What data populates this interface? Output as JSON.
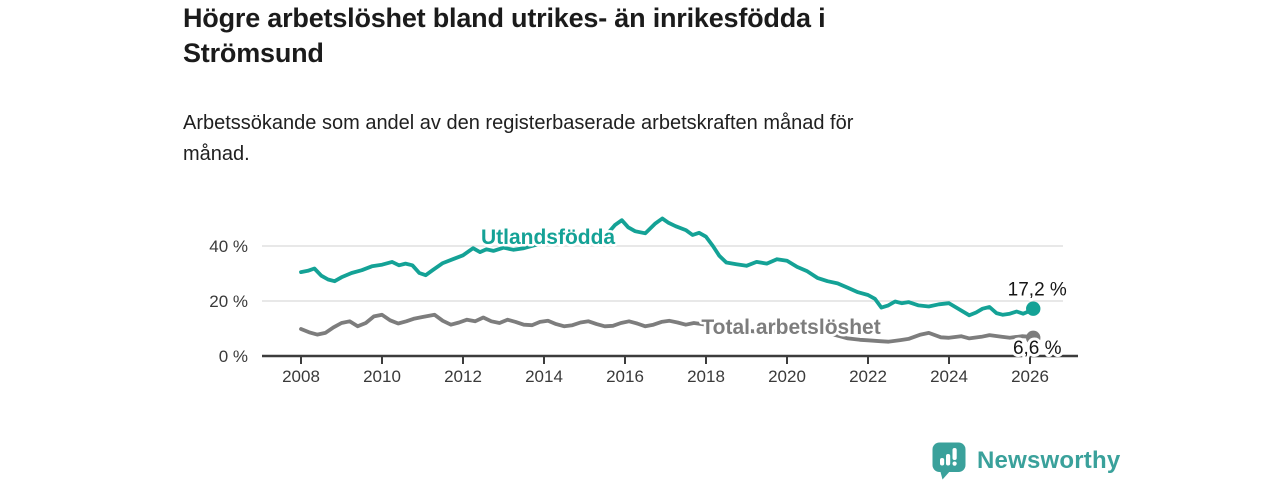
{
  "title": "Högre arbetslöshet bland utrikes- än inrikesfödda i Strömsund",
  "subtitle": "Arbetssökande som andel av den registerbaserade arbetskraften månad för månad.",
  "footer": {
    "brand": "Newsworthy"
  },
  "chart_data": {
    "type": "line",
    "title": "Högre arbetslöshet bland utrikes- än inrikesfödda i Strömsund",
    "xlabel": "",
    "ylabel": "",
    "x_ticks": [
      2008,
      2010,
      2012,
      2014,
      2016,
      2018,
      2020,
      2022,
      2024,
      2026
    ],
    "y_ticks": [
      {
        "value": 0,
        "label": "0 %"
      },
      {
        "value": 20,
        "label": "20 %"
      },
      {
        "value": 40,
        "label": "40 %"
      }
    ],
    "y_gridlines": [
      20,
      40
    ],
    "xlim": [
      2006.9,
      2027.2
    ],
    "ylim": [
      0,
      54
    ],
    "legend_position": "inline-labels",
    "grid": "horizontal-only",
    "colors": {
      "accent_teal": "#14a296",
      "series_gray": "#7d7d7d",
      "axis": "#3c3c3c",
      "grid": "#d9d9d9",
      "value_label": "#161616",
      "brand_teal": "#3aa19b"
    },
    "series": [
      {
        "id": "utlandsfodda",
        "name": "Utlandsfödda",
        "color": "#14a296",
        "end_label": "17,2 %",
        "end_value": 17.2,
        "end_label_position": "above",
        "label_pos": {
          "x": 2014.1,
          "y": 43.3
        },
        "points": [
          [
            2008.0,
            30.5
          ],
          [
            2008.17,
            31.0
          ],
          [
            2008.33,
            31.8
          ],
          [
            2008.5,
            29.2
          ],
          [
            2008.67,
            27.8
          ],
          [
            2008.83,
            27.2
          ],
          [
            2009.0,
            28.6
          ],
          [
            2009.25,
            30.2
          ],
          [
            2009.5,
            31.2
          ],
          [
            2009.75,
            32.6
          ],
          [
            2010.0,
            33.2
          ],
          [
            2010.25,
            34.2
          ],
          [
            2010.42,
            33.0
          ],
          [
            2010.58,
            33.6
          ],
          [
            2010.75,
            33.0
          ],
          [
            2010.92,
            30.2
          ],
          [
            2011.08,
            29.4
          ],
          [
            2011.25,
            31.2
          ],
          [
            2011.5,
            33.8
          ],
          [
            2011.75,
            35.2
          ],
          [
            2012.0,
            36.6
          ],
          [
            2012.25,
            39.2
          ],
          [
            2012.42,
            37.8
          ],
          [
            2012.58,
            38.8
          ],
          [
            2012.75,
            38.2
          ],
          [
            2013.0,
            39.4
          ],
          [
            2013.25,
            38.6
          ],
          [
            2013.5,
            39.2
          ],
          [
            2013.75,
            40.2
          ],
          [
            2014.0,
            41.2
          ],
          [
            2014.25,
            43.6
          ],
          [
            2014.5,
            42.0
          ],
          [
            2014.75,
            42.8
          ],
          [
            2015.0,
            43.2
          ],
          [
            2015.25,
            44.6
          ],
          [
            2015.5,
            43.4
          ],
          [
            2015.75,
            47.6
          ],
          [
            2015.92,
            49.4
          ],
          [
            2016.08,
            46.8
          ],
          [
            2016.25,
            45.4
          ],
          [
            2016.5,
            44.6
          ],
          [
            2016.75,
            48.2
          ],
          [
            2016.92,
            50.0
          ],
          [
            2017.08,
            48.4
          ],
          [
            2017.25,
            47.2
          ],
          [
            2017.5,
            45.8
          ],
          [
            2017.67,
            44.0
          ],
          [
            2017.83,
            44.8
          ],
          [
            2018.0,
            43.4
          ],
          [
            2018.17,
            40.0
          ],
          [
            2018.33,
            36.4
          ],
          [
            2018.5,
            34.0
          ],
          [
            2018.75,
            33.4
          ],
          [
            2019.0,
            32.8
          ],
          [
            2019.25,
            34.2
          ],
          [
            2019.5,
            33.6
          ],
          [
            2019.75,
            35.2
          ],
          [
            2020.0,
            34.6
          ],
          [
            2020.25,
            32.4
          ],
          [
            2020.5,
            30.8
          ],
          [
            2020.75,
            28.4
          ],
          [
            2021.0,
            27.2
          ],
          [
            2021.25,
            26.4
          ],
          [
            2021.5,
            24.8
          ],
          [
            2021.75,
            23.2
          ],
          [
            2022.0,
            22.2
          ],
          [
            2022.17,
            20.8
          ],
          [
            2022.33,
            17.6
          ],
          [
            2022.5,
            18.4
          ],
          [
            2022.67,
            19.8
          ],
          [
            2022.83,
            19.2
          ],
          [
            2023.0,
            19.6
          ],
          [
            2023.25,
            18.4
          ],
          [
            2023.5,
            18.0
          ],
          [
            2023.75,
            18.8
          ],
          [
            2024.0,
            19.2
          ],
          [
            2024.25,
            17.0
          ],
          [
            2024.5,
            14.8
          ],
          [
            2024.67,
            15.8
          ],
          [
            2024.83,
            17.2
          ],
          [
            2025.0,
            17.8
          ],
          [
            2025.17,
            15.6
          ],
          [
            2025.33,
            15.0
          ],
          [
            2025.5,
            15.4
          ],
          [
            2025.67,
            16.2
          ],
          [
            2025.83,
            15.4
          ],
          [
            2026.0,
            16.4
          ],
          [
            2026.08,
            17.2
          ]
        ]
      },
      {
        "id": "total",
        "name": "Total arbetslöshet",
        "color": "#7d7d7d",
        "end_label": "6,6 %",
        "end_value": 6.6,
        "end_label_position": "below",
        "label_pos": {
          "x": 2020.1,
          "y": 10.6
        },
        "points": [
          [
            2008.0,
            9.8
          ],
          [
            2008.2,
            8.6
          ],
          [
            2008.4,
            7.8
          ],
          [
            2008.6,
            8.4
          ],
          [
            2008.8,
            10.4
          ],
          [
            2009.0,
            12.0
          ],
          [
            2009.2,
            12.6
          ],
          [
            2009.4,
            10.8
          ],
          [
            2009.6,
            12.0
          ],
          [
            2009.8,
            14.4
          ],
          [
            2010.0,
            15.0
          ],
          [
            2010.2,
            13.0
          ],
          [
            2010.4,
            11.8
          ],
          [
            2010.6,
            12.6
          ],
          [
            2010.8,
            13.6
          ],
          [
            2011.0,
            14.2
          ],
          [
            2011.3,
            15.0
          ],
          [
            2011.5,
            12.8
          ],
          [
            2011.7,
            11.4
          ],
          [
            2011.9,
            12.2
          ],
          [
            2012.1,
            13.2
          ],
          [
            2012.3,
            12.6
          ],
          [
            2012.5,
            14.0
          ],
          [
            2012.7,
            12.6
          ],
          [
            2012.9,
            12.0
          ],
          [
            2013.1,
            13.2
          ],
          [
            2013.3,
            12.4
          ],
          [
            2013.5,
            11.4
          ],
          [
            2013.7,
            11.2
          ],
          [
            2013.9,
            12.4
          ],
          [
            2014.1,
            12.8
          ],
          [
            2014.3,
            11.6
          ],
          [
            2014.5,
            10.8
          ],
          [
            2014.7,
            11.2
          ],
          [
            2014.9,
            12.2
          ],
          [
            2015.1,
            12.6
          ],
          [
            2015.3,
            11.6
          ],
          [
            2015.5,
            10.8
          ],
          [
            2015.7,
            11.0
          ],
          [
            2015.9,
            12.0
          ],
          [
            2016.1,
            12.6
          ],
          [
            2016.3,
            11.8
          ],
          [
            2016.5,
            10.8
          ],
          [
            2016.7,
            11.4
          ],
          [
            2016.9,
            12.4
          ],
          [
            2017.1,
            12.8
          ],
          [
            2017.3,
            12.2
          ],
          [
            2017.5,
            11.4
          ],
          [
            2017.7,
            12.0
          ],
          [
            2017.9,
            11.6
          ],
          [
            2018.1,
            11.2
          ],
          [
            2018.3,
            10.6
          ],
          [
            2018.5,
            10.0
          ],
          [
            2018.7,
            9.6
          ],
          [
            2019.0,
            9.2
          ],
          [
            2019.3,
            8.8
          ],
          [
            2019.5,
            8.6
          ],
          [
            2019.8,
            9.2
          ],
          [
            2020.0,
            9.8
          ],
          [
            2020.3,
            10.6
          ],
          [
            2020.5,
            10.2
          ],
          [
            2020.8,
            9.2
          ],
          [
            2021.0,
            8.4
          ],
          [
            2021.3,
            7.2
          ],
          [
            2021.5,
            6.4
          ],
          [
            2021.8,
            5.9
          ],
          [
            2022.0,
            5.7
          ],
          [
            2022.3,
            5.4
          ],
          [
            2022.5,
            5.2
          ],
          [
            2022.8,
            5.8
          ],
          [
            2023.0,
            6.2
          ],
          [
            2023.3,
            7.8
          ],
          [
            2023.5,
            8.4
          ],
          [
            2023.8,
            6.8
          ],
          [
            2024.0,
            6.6
          ],
          [
            2024.3,
            7.2
          ],
          [
            2024.5,
            6.4
          ],
          [
            2024.8,
            7.0
          ],
          [
            2025.0,
            7.6
          ],
          [
            2025.3,
            7.0
          ],
          [
            2025.5,
            6.6
          ],
          [
            2025.8,
            7.2
          ],
          [
            2026.0,
            7.0
          ],
          [
            2026.08,
            6.6
          ]
        ]
      }
    ]
  }
}
